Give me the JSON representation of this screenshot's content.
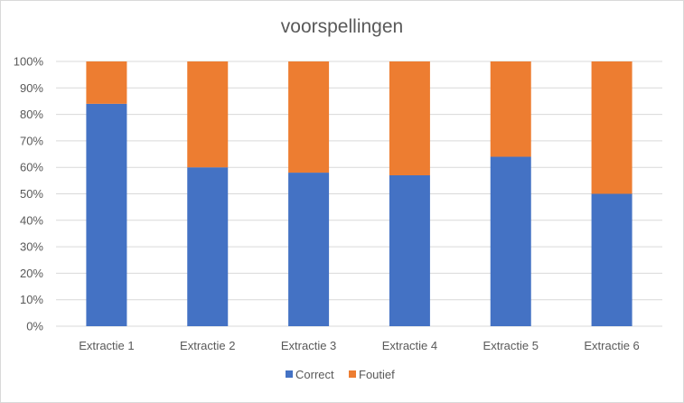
{
  "chart_data": {
    "type": "bar",
    "stacked": "percent",
    "title": "voorspellingen",
    "categories": [
      "Extractie 1",
      "Extractie 2",
      "Extractie 3",
      "Extractie 4",
      "Extractie 5",
      "Extractie 6"
    ],
    "series": [
      {
        "name": "Correct",
        "color": "#4472C4",
        "values": [
          84,
          60,
          58,
          57,
          64,
          50
        ]
      },
      {
        "name": "Foutief",
        "color": "#ED7D31",
        "values": [
          16,
          40,
          42,
          43,
          36,
          50
        ]
      }
    ],
    "yticks": [
      "0%",
      "10%",
      "20%",
      "30%",
      "40%",
      "50%",
      "60%",
      "70%",
      "80%",
      "90%",
      "100%"
    ],
    "ylim": [
      0,
      100
    ],
    "grid": true,
    "legend_position": "bottom"
  }
}
